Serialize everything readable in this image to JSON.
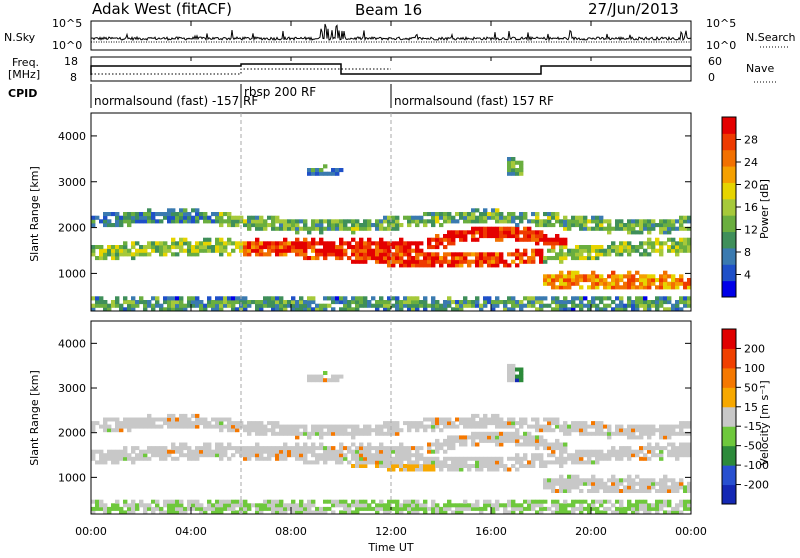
{
  "header": {
    "title": "Adak West (fitACF)",
    "beam": "Beam 16",
    "date": "27/Jun/2013"
  },
  "labels": {
    "nsky": "N.Sky",
    "nsearch": "N.Search",
    "freq_line1": "Freq.",
    "freq_line2": "[MHz]",
    "nave": "Nave",
    "cpid": "CPID"
  },
  "noise_axis": {
    "top": "10^5",
    "bottom": "10^0"
  },
  "freq_axis": {
    "top": "18",
    "bottom": "8"
  },
  "nave_axis": {
    "top": "60",
    "bottom": "0"
  },
  "cpid_segments": [
    {
      "label": "normalsound (fast) -157 RF",
      "start_hour": 0
    },
    {
      "label": "rbsp 200 RF",
      "start_hour": 6
    },
    {
      "label": "normalsound (fast) 157 RF",
      "start_hour": 12
    }
  ],
  "chart_data": [
    {
      "type": "heatmap",
      "name": "power",
      "ylabel": "Slant Range [km]",
      "xlim": [
        0,
        24
      ],
      "ylim": [
        180,
        4500
      ],
      "yticks": [
        1000,
        2000,
        3000,
        4000
      ],
      "colorbar": {
        "label": "Power [dB]",
        "ticks": [
          "28",
          "24",
          "20",
          "16",
          "12",
          "8",
          "4"
        ],
        "range": [
          0,
          30
        ],
        "colors": [
          "#0000e8",
          "#1f50c8",
          "#3a7ab0",
          "#3f8f5a",
          "#6aae3f",
          "#a6c93a",
          "#e6d400",
          "#f5a000",
          "#f27000",
          "#ee3a00",
          "#e40000"
        ]
      }
    },
    {
      "type": "heatmap",
      "name": "velocity",
      "ylabel": "Slant Range [km]",
      "xlabel": "Time UT",
      "xlim": [
        0,
        24
      ],
      "ylim": [
        180,
        4500
      ],
      "yticks": [
        1000,
        2000,
        3000,
        4000
      ],
      "xticks": [
        "00:00",
        "04:00",
        "08:00",
        "12:00",
        "16:00",
        "20:00",
        "00:00"
      ],
      "colorbar": {
        "label": "Velocity [m s⁻¹]",
        "ticks": [
          "200",
          "100",
          "50",
          "15",
          "-15",
          "-50",
          "-100",
          "-200"
        ],
        "colors": [
          "#1428b4",
          "#2850d0",
          "#2c8a3a",
          "#6ec83c",
          "#c8c8c8",
          "#f7a800",
          "#f57800",
          "#f04000",
          "#e00000"
        ]
      }
    }
  ]
}
